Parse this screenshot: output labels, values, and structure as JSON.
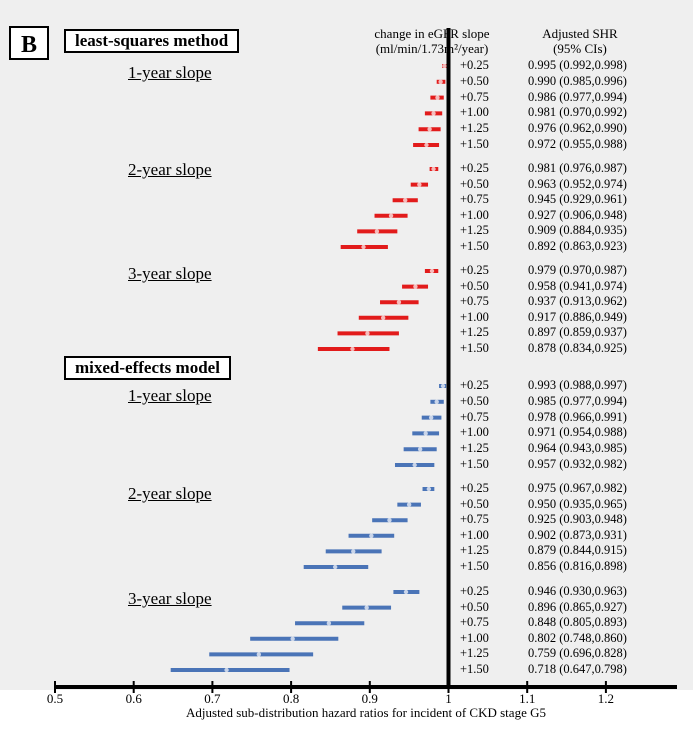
{
  "panel_label": "B",
  "header": {
    "delta_line1": "change in eGFR slope",
    "delta_line2": "(ml/min/1.73m²/year)",
    "shr_line1": "Adjusted SHR",
    "shr_line2": "(95% CIs)"
  },
  "colors": {
    "least_squares": "#e21b1b",
    "mixed_effects": "#4a74b7",
    "reference_line": "#000000"
  },
  "chart_data": {
    "type": "forest",
    "title": "",
    "xlabel": "Adjusted sub-distribution hazard ratios for incident of CKD stage G5",
    "xlim": [
      0.5,
      1.3
    ],
    "xticks": [
      "0.5",
      "0.6",
      "0.7",
      "0.8",
      "0.9",
      "1",
      "1.1",
      "1.2"
    ],
    "reference_value": 1,
    "methods": [
      {
        "name": "least-squares method",
        "color_key": "least_squares",
        "groups": [
          {
            "label": "1-year slope",
            "rows": [
              {
                "delta": "+0.25",
                "hr": 0.995,
                "lo": 0.992,
                "hi": 0.998,
                "text": "0.995 (0.992,0.998)"
              },
              {
                "delta": "+0.50",
                "hr": 0.99,
                "lo": 0.985,
                "hi": 0.996,
                "text": "0.990 (0.985,0.996)"
              },
              {
                "delta": "+0.75",
                "hr": 0.986,
                "lo": 0.977,
                "hi": 0.994,
                "text": "0.986 (0.977,0.994)"
              },
              {
                "delta": "+1.00",
                "hr": 0.981,
                "lo": 0.97,
                "hi": 0.992,
                "text": "0.981 (0.970,0.992)"
              },
              {
                "delta": "+1.25",
                "hr": 0.976,
                "lo": 0.962,
                "hi": 0.99,
                "text": "0.976 (0.962,0.990)"
              },
              {
                "delta": "+1.50",
                "hr": 0.972,
                "lo": 0.955,
                "hi": 0.988,
                "text": "0.972 (0.955,0.988)"
              }
            ]
          },
          {
            "label": "2-year slope",
            "rows": [
              {
                "delta": "+0.25",
                "hr": 0.981,
                "lo": 0.976,
                "hi": 0.987,
                "text": "0.981 (0.976,0.987)"
              },
              {
                "delta": "+0.50",
                "hr": 0.963,
                "lo": 0.952,
                "hi": 0.974,
                "text": "0.963 (0.952,0.974)"
              },
              {
                "delta": "+0.75",
                "hr": 0.945,
                "lo": 0.929,
                "hi": 0.961,
                "text": "0.945 (0.929,0.961)"
              },
              {
                "delta": "+1.00",
                "hr": 0.927,
                "lo": 0.906,
                "hi": 0.948,
                "text": "0.927 (0.906,0.948)"
              },
              {
                "delta": "+1.25",
                "hr": 0.909,
                "lo": 0.884,
                "hi": 0.935,
                "text": "0.909 (0.884,0.935)"
              },
              {
                "delta": "+1.50",
                "hr": 0.892,
                "lo": 0.863,
                "hi": 0.923,
                "text": "0.892 (0.863,0.923)"
              }
            ]
          },
          {
            "label": "3-year slope",
            "rows": [
              {
                "delta": "+0.25",
                "hr": 0.979,
                "lo": 0.97,
                "hi": 0.987,
                "text": "0.979 (0.970,0.987)"
              },
              {
                "delta": "+0.50",
                "hr": 0.958,
                "lo": 0.941,
                "hi": 0.974,
                "text": "0.958 (0.941,0.974)"
              },
              {
                "delta": "+0.75",
                "hr": 0.937,
                "lo": 0.913,
                "hi": 0.962,
                "text": "0.937 (0.913,0.962)"
              },
              {
                "delta": "+1.00",
                "hr": 0.917,
                "lo": 0.886,
                "hi": 0.949,
                "text": "0.917 (0.886,0.949)"
              },
              {
                "delta": "+1.25",
                "hr": 0.897,
                "lo": 0.859,
                "hi": 0.937,
                "text": "0.897 (0.859,0.937)"
              },
              {
                "delta": "+1.50",
                "hr": 0.878,
                "lo": 0.834,
                "hi": 0.925,
                "text": "0.878 (0.834,0.925)"
              }
            ]
          }
        ]
      },
      {
        "name": "mixed-effects model",
        "color_key": "mixed_effects",
        "groups": [
          {
            "label": "1-year slope",
            "rows": [
              {
                "delta": "+0.25",
                "hr": 0.993,
                "lo": 0.988,
                "hi": 0.997,
                "text": "0.993 (0.988,0.997)"
              },
              {
                "delta": "+0.50",
                "hr": 0.985,
                "lo": 0.977,
                "hi": 0.994,
                "text": "0.985 (0.977,0.994)"
              },
              {
                "delta": "+0.75",
                "hr": 0.978,
                "lo": 0.966,
                "hi": 0.991,
                "text": "0.978 (0.966,0.991)"
              },
              {
                "delta": "+1.00",
                "hr": 0.971,
                "lo": 0.954,
                "hi": 0.988,
                "text": "0.971 (0.954,0.988)"
              },
              {
                "delta": "+1.25",
                "hr": 0.964,
                "lo": 0.943,
                "hi": 0.985,
                "text": "0.964 (0.943,0.985)"
              },
              {
                "delta": "+1.50",
                "hr": 0.957,
                "lo": 0.932,
                "hi": 0.982,
                "text": "0.957 (0.932,0.982)"
              }
            ]
          },
          {
            "label": "2-year slope",
            "rows": [
              {
                "delta": "+0.25",
                "hr": 0.975,
                "lo": 0.967,
                "hi": 0.982,
                "text": "0.975 (0.967,0.982)"
              },
              {
                "delta": "+0.50",
                "hr": 0.95,
                "lo": 0.935,
                "hi": 0.965,
                "text": "0.950 (0.935,0.965)"
              },
              {
                "delta": "+0.75",
                "hr": 0.925,
                "lo": 0.903,
                "hi": 0.948,
                "text": "0.925 (0.903,0.948)"
              },
              {
                "delta": "+1.00",
                "hr": 0.902,
                "lo": 0.873,
                "hi": 0.931,
                "text": "0.902 (0.873,0.931)"
              },
              {
                "delta": "+1.25",
                "hr": 0.879,
                "lo": 0.844,
                "hi": 0.915,
                "text": "0.879 (0.844,0.915)"
              },
              {
                "delta": "+1.50",
                "hr": 0.856,
                "lo": 0.816,
                "hi": 0.898,
                "text": "0.856 (0.816,0.898)"
              }
            ]
          },
          {
            "label": "3-year slope",
            "rows": [
              {
                "delta": "+0.25",
                "hr": 0.946,
                "lo": 0.93,
                "hi": 0.963,
                "text": "0.946 (0.930,0.963)"
              },
              {
                "delta": "+0.50",
                "hr": 0.896,
                "lo": 0.865,
                "hi": 0.927,
                "text": "0.896 (0.865,0.927)"
              },
              {
                "delta": "+0.75",
                "hr": 0.848,
                "lo": 0.805,
                "hi": 0.893,
                "text": "0.848 (0.805,0.893)"
              },
              {
                "delta": "+1.00",
                "hr": 0.802,
                "lo": 0.748,
                "hi": 0.86,
                "text": "0.802 (0.748,0.860)"
              },
              {
                "delta": "+1.25",
                "hr": 0.759,
                "lo": 0.696,
                "hi": 0.828,
                "text": "0.759 (0.696,0.828)"
              },
              {
                "delta": "+1.50",
                "hr": 0.718,
                "lo": 0.647,
                "hi": 0.798,
                "text": "0.718 (0.647,0.798)"
              }
            ]
          }
        ]
      }
    ]
  }
}
